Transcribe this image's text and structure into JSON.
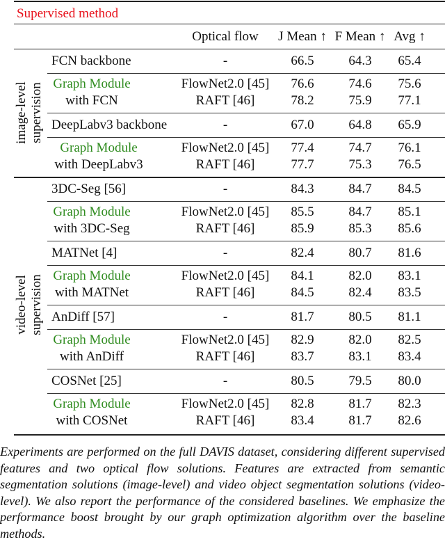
{
  "section_title": "Supervised method",
  "header": {
    "optical_flow": "Optical flow",
    "j_mean": "J Mean ↑",
    "f_mean": "F Mean ↑",
    "avg": "Avg ↑"
  },
  "groups": [
    {
      "label_line1": "image-level",
      "label_line2": "supervision",
      "blocks": [
        {
          "baseline": {
            "name": "FCN backbone",
            "flow": "-",
            "j": "66.5",
            "f": "64.3",
            "avg": "65.4"
          },
          "module": {
            "line1": "Graph Module",
            "line2": "with FCN",
            "rows": [
              {
                "flow": "FlowNet2.0 [45]",
                "j": "76.6",
                "f": "74.6",
                "avg": "75.6"
              },
              {
                "flow": "RAFT [46]",
                "j": "78.2",
                "f": "75.9",
                "avg": "77.1"
              }
            ]
          }
        },
        {
          "baseline": {
            "name": "DeepLabv3 backbone",
            "flow": "-",
            "j": "67.0",
            "f": "64.8",
            "avg": "65.9"
          },
          "module": {
            "line1": "Graph Module",
            "line2": "with DeepLabv3",
            "rows": [
              {
                "flow": "FlowNet2.0 [45]",
                "j": "77.4",
                "f": "74.7",
                "avg": "76.1"
              },
              {
                "flow": "RAFT [46]",
                "j": "77.7",
                "f": "75.3",
                "avg": "76.5"
              }
            ]
          }
        }
      ]
    },
    {
      "label_line1": "video-level",
      "label_line2": "supervision",
      "blocks": [
        {
          "baseline": {
            "name": "3DC-Seg [56]",
            "flow": "-",
            "j": "84.3",
            "f": "84.7",
            "avg": "84.5"
          },
          "module": {
            "line1": "Graph Module",
            "line2": "with 3DC-Seg",
            "rows": [
              {
                "flow": "FlowNet2.0 [45]",
                "j": "85.5",
                "f": "84.7",
                "avg": "85.1"
              },
              {
                "flow": "RAFT [46]",
                "j": "85.9",
                "f": "85.3",
                "avg": "85.6"
              }
            ]
          }
        },
        {
          "baseline": {
            "name": "MATNet [4]",
            "flow": "-",
            "j": "82.4",
            "f": "80.7",
            "avg": "81.6"
          },
          "module": {
            "line1": "Graph Module",
            "line2": "with MATNet",
            "rows": [
              {
                "flow": "FlowNet2.0 [45]",
                "j": "84.1",
                "f": "82.0",
                "avg": "83.1"
              },
              {
                "flow": "RAFT [46]",
                "j": "84.5",
                "f": "82.4",
                "avg": "83.5"
              }
            ]
          }
        },
        {
          "baseline": {
            "name": "AnDiff [57]",
            "flow": "-",
            "j": "81.7",
            "f": "80.5",
            "avg": "81.1"
          },
          "module": {
            "line1": "Graph Module",
            "line2": "with AnDiff",
            "rows": [
              {
                "flow": "FlowNet2.0 [45]",
                "j": "82.9",
                "f": "82.0",
                "avg": "82.5"
              },
              {
                "flow": "RAFT [46]",
                "j": "83.7",
                "f": "83.1",
                "avg": "83.4"
              }
            ]
          }
        },
        {
          "baseline": {
            "name": "COSNet [25]",
            "flow": "-",
            "j": "80.5",
            "f": "79.5",
            "avg": "80.0"
          },
          "module": {
            "line1": "Graph Module",
            "line2": "with COSNet",
            "rows": [
              {
                "flow": "FlowNet2.0 [45]",
                "j": "82.8",
                "f": "81.7",
                "avg": "82.3"
              },
              {
                "flow": "RAFT [46]",
                "j": "83.4",
                "f": "81.7",
                "avg": "82.6"
              }
            ]
          }
        }
      ]
    }
  ],
  "caption": "Experiments are performed on the full DAVIS dataset, considering different supervised features and two optical flow solutions. Features are extracted from semantic segmentation solutions (image-level) and video object segmentation solutions (video-level). We also report the performance of the considered baselines. We emphasize the performance boost brought by our graph optimization algorithm over the baseline methods."
}
